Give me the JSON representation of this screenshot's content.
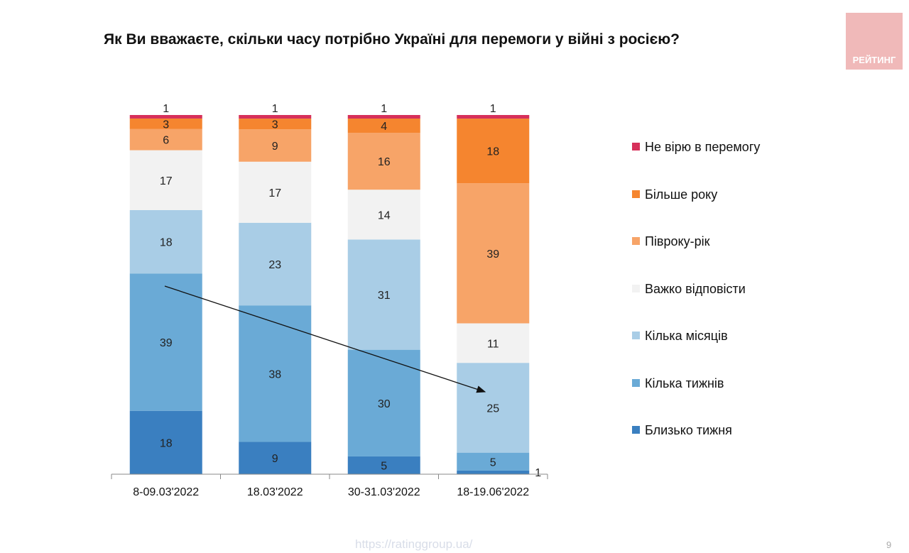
{
  "title": "Як Ви вважаєте, скільки часу потрібно Україні для перемоги у війні з росією?",
  "logo_text": "РЕЙТИНГ",
  "url": "https://ratinggroup.ua/",
  "page_number": "9",
  "chart_data": {
    "type": "bar",
    "stacked": true,
    "title": "Як Ви вважаєте, скільки часу потрібно Україні для перемоги у війні з росією?",
    "categories": [
      "8-09.03'2022",
      "18.03'2022",
      "30-31.03'2022",
      "18-19.06'2022"
    ],
    "series": [
      {
        "name": "Близько тижня",
        "color": "#3a7fc0",
        "values": [
          18,
          9,
          5,
          1
        ]
      },
      {
        "name": "Кілька тижнів",
        "color": "#6aaad6",
        "values": [
          39,
          38,
          30,
          5
        ]
      },
      {
        "name": "Кілька місяців",
        "color": "#a9cde6",
        "values": [
          18,
          23,
          31,
          25
        ]
      },
      {
        "name": "Важко відповісти",
        "color": "#f2f2f2",
        "values": [
          17,
          17,
          14,
          11
        ]
      },
      {
        "name": "Півроку-рік",
        "color": "#f7a468",
        "values": [
          6,
          9,
          16,
          39
        ]
      },
      {
        "name": "Більше року",
        "color": "#f5852f",
        "values": [
          3,
          3,
          4,
          18
        ]
      },
      {
        "name": "Не вірю в перемогу",
        "color": "#d6305a",
        "values": [
          1,
          1,
          1,
          1
        ]
      }
    ],
    "legend_placement": "right",
    "legend_order": [
      "Не вірю в перемогу",
      "Більше року",
      "Півроку-рік",
      "Важко відповісти",
      "Кілька місяців",
      "Кілька тижнів",
      "Близько тижня"
    ],
    "annotation": "arrow showing downward trend",
    "grid": false,
    "y_axis_visible": false
  }
}
